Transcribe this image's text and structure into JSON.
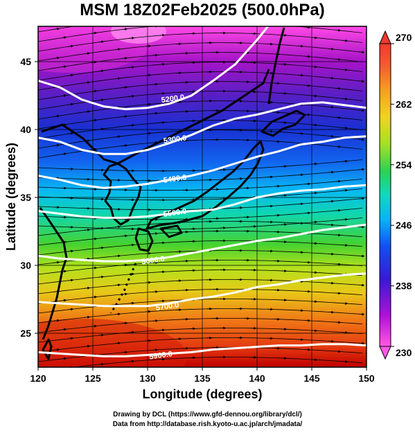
{
  "title": "MSM 18Z02Feb2025 (500.0hPa)",
  "xlabel": "Longitude (degrees)",
  "ylabel": "Latitude  (degrees)",
  "xticks": [
    "120",
    "125",
    "130",
    "135",
    "140",
    "145",
    "150"
  ],
  "yticks": [
    "25",
    "30",
    "35",
    "40",
    "45"
  ],
  "xrange": [
    120,
    150
  ],
  "yrange": [
    22.5,
    47.6
  ],
  "colorbar": {
    "min": 230,
    "max": 270,
    "ticks": [
      "230",
      "238",
      "246",
      "254",
      "262",
      "270"
    ]
  },
  "contours": [
    {
      "label": "5200.0",
      "label_lon": 132.3,
      "label_lat": 42.3,
      "points": [
        [
          120,
          43.6
        ],
        [
          122,
          43.1
        ],
        [
          124,
          42.2
        ],
        [
          126,
          41.7
        ],
        [
          128,
          41.5
        ],
        [
          130,
          41.6
        ],
        [
          132,
          41.9
        ],
        [
          134,
          42.5
        ],
        [
          136,
          43.6
        ],
        [
          138,
          44.8
        ],
        [
          140,
          46.6
        ],
        [
          141,
          47.6
        ]
      ]
    },
    {
      "label": "5300.0",
      "label_lon": 132.5,
      "label_lat": 39.3,
      "points": [
        [
          120,
          39.4
        ],
        [
          122,
          39.1
        ],
        [
          124,
          38.5
        ],
        [
          126,
          38.2
        ],
        [
          128,
          38.2
        ],
        [
          130,
          38.5
        ],
        [
          132,
          39.0
        ],
        [
          134,
          39.6
        ],
        [
          136,
          40.3
        ],
        [
          138,
          40.8
        ],
        [
          140,
          41.1
        ],
        [
          142,
          41.5
        ],
        [
          144,
          41.9
        ],
        [
          146,
          42.0
        ],
        [
          148,
          41.8
        ],
        [
          150,
          41.6
        ]
      ]
    },
    {
      "label": "5400.0",
      "label_lon": 132.5,
      "label_lat": 36.4,
      "points": [
        [
          120,
          36.6
        ],
        [
          122,
          36.3
        ],
        [
          124,
          35.9
        ],
        [
          126,
          35.7
        ],
        [
          128,
          35.8
        ],
        [
          130,
          36.0
        ],
        [
          132,
          36.3
        ],
        [
          134,
          36.6
        ],
        [
          136,
          37.0
        ],
        [
          138,
          37.5
        ],
        [
          140,
          38.0
        ],
        [
          142,
          38.4
        ],
        [
          144,
          38.9
        ],
        [
          146,
          39.1
        ],
        [
          148,
          39.4
        ],
        [
          150,
          39.5
        ]
      ]
    },
    {
      "label": "5500.0",
      "label_lon": 132.5,
      "label_lat": 33.9,
      "points": [
        [
          120,
          34.0
        ],
        [
          122,
          33.8
        ],
        [
          124,
          33.6
        ],
        [
          126,
          33.5
        ],
        [
          128,
          33.5
        ],
        [
          130,
          33.6
        ],
        [
          132,
          33.8
        ],
        [
          134,
          34.0
        ],
        [
          136,
          34.1
        ],
        [
          138,
          34.5
        ],
        [
          140,
          35.0
        ],
        [
          142,
          35.3
        ],
        [
          144,
          35.5
        ],
        [
          146,
          35.6
        ],
        [
          148,
          35.8
        ],
        [
          150,
          35.9
        ]
      ]
    },
    {
      "label": "5600.0",
      "label_lon": 130.5,
      "label_lat": 30.4,
      "points": [
        [
          120,
          30.7
        ],
        [
          122,
          30.5
        ],
        [
          124,
          30.4
        ],
        [
          126,
          30.3
        ],
        [
          128,
          30.3
        ],
        [
          130,
          30.4
        ],
        [
          132,
          30.6
        ],
        [
          134,
          30.9
        ],
        [
          136,
          31.2
        ],
        [
          138,
          31.5
        ],
        [
          140,
          31.8
        ],
        [
          142,
          32.0
        ],
        [
          144,
          32.3
        ],
        [
          146,
          32.6
        ],
        [
          148,
          32.8
        ],
        [
          150,
          33.0
        ]
      ]
    },
    {
      "label": "5700.0",
      "label_lon": 131.8,
      "label_lat": 27.0,
      "points": [
        [
          120,
          27.3
        ],
        [
          122,
          27.2
        ],
        [
          124,
          27.1
        ],
        [
          126,
          27.0
        ],
        [
          128,
          27.0
        ],
        [
          130,
          27.0
        ],
        [
          132,
          27.2
        ],
        [
          134,
          27.5
        ],
        [
          136,
          27.7
        ],
        [
          138,
          28.0
        ],
        [
          140,
          28.4
        ],
        [
          142,
          28.6
        ],
        [
          144,
          28.9
        ],
        [
          146,
          29.1
        ],
        [
          148,
          29.3
        ],
        [
          150,
          29.4
        ]
      ]
    },
    {
      "label": "5900.0",
      "label_lon": 131.2,
      "label_lat": 23.4,
      "points": [
        [
          120,
          23.6
        ],
        [
          122,
          23.5
        ],
        [
          124,
          23.4
        ],
        [
          126,
          23.3
        ],
        [
          128,
          23.3
        ],
        [
          130,
          23.4
        ],
        [
          132,
          23.5
        ],
        [
          134,
          23.6
        ],
        [
          136,
          23.8
        ],
        [
          138,
          23.9
        ],
        [
          140,
          24.0
        ],
        [
          142,
          24.1
        ],
        [
          144,
          24.1
        ],
        [
          146,
          24.2
        ],
        [
          148,
          24.2
        ],
        [
          150,
          24.1
        ]
      ]
    }
  ],
  "credits": [
    "Drawing by DCL (https://www.gfd-dennou.org/library/dcl/)",
    "Data from http://database.rish.kyoto-u.ac.jp/arch/jmadata/"
  ]
}
